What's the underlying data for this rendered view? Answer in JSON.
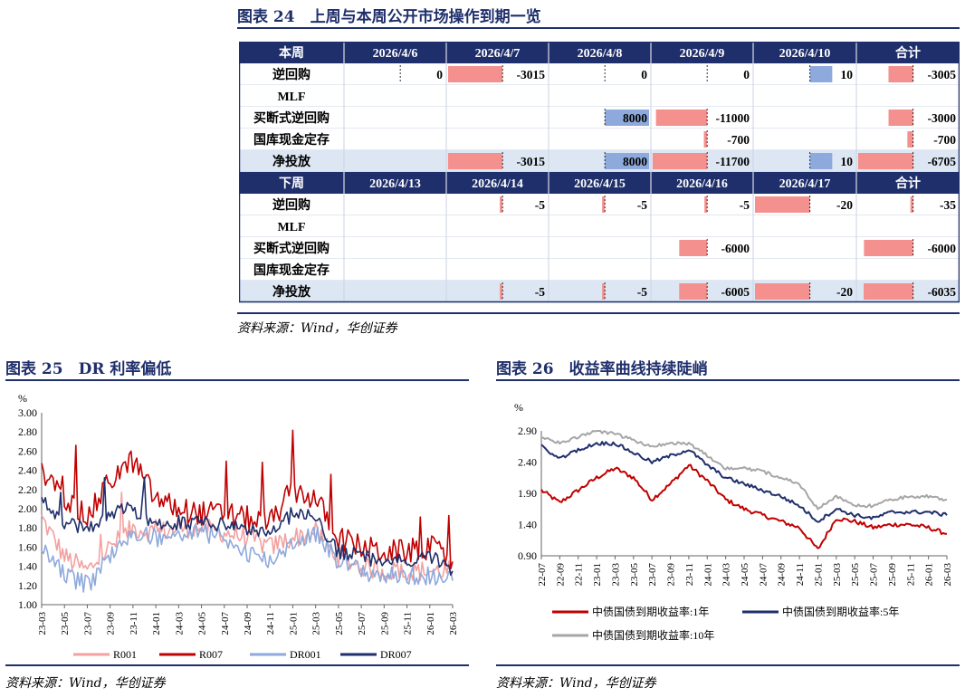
{
  "figure24": {
    "title": "图表 24　上周与本周公开市场操作到期一览",
    "source": "资料来源：Wind，华创证券",
    "colors": {
      "header": "#1F2F6B",
      "net_row": "#DDE7F4",
      "neg_bar": "#F4908E",
      "pos_bar": "#8EA9DB"
    },
    "blocks": [
      {
        "header": [
          "本周",
          "2026/4/6",
          "2026/4/7",
          "2026/4/8",
          "2026/4/9",
          "2026/4/10",
          "合计"
        ],
        "rows": [
          {
            "label": "逆回购",
            "net": false,
            "values": [
              "0",
              "-3015",
              "0",
              "0",
              "10",
              "-3005"
            ]
          },
          {
            "label": "MLF",
            "net": false,
            "values": [
              "",
              "",
              "",
              "",
              "",
              ""
            ]
          },
          {
            "label": "买断式逆回购",
            "net": false,
            "values": [
              "",
              "",
              "8000",
              "-11000",
              "",
              "-3000"
            ]
          },
          {
            "label": "国库现金定存",
            "net": false,
            "values": [
              "",
              "",
              "",
              "-700",
              "",
              "-700"
            ]
          },
          {
            "label": "净投放",
            "net": true,
            "values": [
              "",
              "-3015",
              "8000",
              "-11700",
              "10",
              "-6705"
            ]
          }
        ]
      },
      {
        "header": [
          "下周",
          "2026/4/13",
          "2026/4/14",
          "2026/4/15",
          "2026/4/16",
          "2026/4/17",
          "合计"
        ],
        "rows": [
          {
            "label": "逆回购",
            "net": false,
            "values": [
              "",
              "-5",
              "-5",
              "-5",
              "-20",
              "-35"
            ]
          },
          {
            "label": "MLF",
            "net": false,
            "values": [
              "",
              "",
              "",
              "",
              "",
              ""
            ]
          },
          {
            "label": "买断式逆回购",
            "net": false,
            "values": [
              "",
              "",
              "",
              "-6000",
              "",
              "-6000"
            ]
          },
          {
            "label": "国库现金定存",
            "net": false,
            "values": [
              "",
              "",
              "",
              "",
              "",
              ""
            ]
          },
          {
            "label": "净投放",
            "net": true,
            "values": [
              "",
              "-5",
              "-5",
              "-6005",
              "-20",
              "-6035"
            ]
          }
        ]
      }
    ]
  },
  "figure25": {
    "title": "图表 25　DR 利率偏低",
    "source": "资料来源：Wind，华创证券",
    "chart_data": {
      "type": "line",
      "ylabel": "%",
      "ylim": [
        1.0,
        3.0
      ],
      "y_ticks": [
        "1.00",
        "1.20",
        "1.40",
        "1.60",
        "1.80",
        "2.00",
        "2.20",
        "2.40",
        "2.60",
        "2.80",
        "3.00"
      ],
      "x_ticks": [
        "23-03",
        "23-05",
        "23-07",
        "23-09",
        "23-11",
        "24-01",
        "24-03",
        "24-05",
        "24-07",
        "24-09",
        "24-11",
        "25-01",
        "25-03",
        "25-05",
        "25-07",
        "25-09",
        "25-11",
        "26-01",
        "26-03"
      ],
      "legend_position": "bottom",
      "series": [
        {
          "name": "R001",
          "color": "#F4A0A0",
          "x": [
            "23-03",
            "23-05",
            "23-07",
            "23-09",
            "23-11",
            "24-01",
            "24-03",
            "24-05",
            "24-07",
            "24-09",
            "24-11",
            "25-01",
            "25-03",
            "25-05",
            "25-07",
            "25-09",
            "25-11",
            "26-01",
            "26-03"
          ],
          "values": [
            1.9,
            1.5,
            1.35,
            1.6,
            1.8,
            1.75,
            1.8,
            1.8,
            1.75,
            1.7,
            1.6,
            1.7,
            1.75,
            1.5,
            1.4,
            1.35,
            1.35,
            1.35,
            1.35
          ]
        },
        {
          "name": "R007",
          "color": "#C00000",
          "x": [
            "23-03",
            "23-05",
            "23-07",
            "23-09",
            "23-11",
            "24-01",
            "24-03",
            "24-05",
            "24-07",
            "24-09",
            "24-11",
            "25-01",
            "25-03",
            "25-05",
            "25-07",
            "25-09",
            "25-11",
            "26-01",
            "26-03"
          ],
          "values": [
            2.35,
            2.1,
            1.9,
            2.3,
            2.5,
            2.1,
            2.0,
            1.95,
            1.95,
            1.9,
            1.85,
            2.2,
            2.1,
            1.7,
            1.6,
            1.55,
            1.55,
            1.6,
            1.45
          ]
        },
        {
          "name": "DR001",
          "color": "#8EA9DB",
          "x": [
            "23-03",
            "23-05",
            "23-07",
            "23-09",
            "23-11",
            "24-01",
            "24-03",
            "24-05",
            "24-07",
            "24-09",
            "24-11",
            "25-01",
            "25-03",
            "25-05",
            "25-07",
            "25-09",
            "25-11",
            "26-01",
            "26-03"
          ],
          "values": [
            1.6,
            1.3,
            1.2,
            1.5,
            1.75,
            1.7,
            1.75,
            1.75,
            1.7,
            1.55,
            1.45,
            1.65,
            1.75,
            1.45,
            1.35,
            1.3,
            1.3,
            1.3,
            1.25
          ]
        },
        {
          "name": "DR007",
          "color": "#1F2F6B",
          "x": [
            "23-03",
            "23-05",
            "23-07",
            "23-09",
            "23-11",
            "24-01",
            "24-03",
            "24-05",
            "24-07",
            "24-09",
            "24-11",
            "25-01",
            "25-03",
            "25-05",
            "25-07",
            "25-09",
            "25-11",
            "26-01",
            "26-03"
          ],
          "values": [
            2.1,
            1.85,
            1.8,
            1.95,
            2.0,
            1.85,
            1.85,
            1.85,
            1.85,
            1.8,
            1.75,
            1.95,
            1.9,
            1.55,
            1.5,
            1.45,
            1.45,
            1.5,
            1.35
          ]
        }
      ]
    }
  },
  "figure26": {
    "title": "图表 26　收益率曲线持续陡峭",
    "source": "资料来源：Wind，华创证券",
    "chart_data": {
      "type": "line",
      "ylabel": "%",
      "ylim": [
        0.9,
        2.9
      ],
      "y_ticks": [
        "0.90",
        "1.40",
        "1.90",
        "2.40",
        "2.90"
      ],
      "x_ticks": [
        "22-07",
        "22-09",
        "22-11",
        "23-01",
        "23-03",
        "23-05",
        "23-07",
        "23-09",
        "23-11",
        "24-01",
        "24-03",
        "24-05",
        "24-07",
        "24-09",
        "24-11",
        "25-01",
        "25-03",
        "25-05",
        "25-07",
        "25-09",
        "25-11",
        "26-01",
        "26-03"
      ],
      "legend_position": "bottom",
      "series": [
        {
          "name": "中债国债到期收益率:1年",
          "color": "#C00000",
          "x": [
            "22-07",
            "22-09",
            "22-11",
            "23-01",
            "23-03",
            "23-05",
            "23-07",
            "23-09",
            "23-11",
            "24-01",
            "24-03",
            "24-05",
            "24-07",
            "24-09",
            "24-11",
            "25-01",
            "25-03",
            "25-05",
            "25-07",
            "25-09",
            "25-11",
            "26-01",
            "26-03"
          ],
          "values": [
            1.95,
            1.75,
            1.95,
            2.15,
            2.3,
            2.15,
            1.8,
            2.05,
            2.35,
            2.1,
            1.8,
            1.65,
            1.55,
            1.45,
            1.35,
            1.0,
            1.5,
            1.45,
            1.35,
            1.4,
            1.4,
            1.35,
            1.25
          ]
        },
        {
          "name": "中债国债到期收益率:5年",
          "color": "#1F2F6B",
          "x": [
            "22-07",
            "22-09",
            "22-11",
            "23-01",
            "23-03",
            "23-05",
            "23-07",
            "23-09",
            "23-11",
            "24-01",
            "24-03",
            "24-05",
            "24-07",
            "24-09",
            "24-11",
            "25-01",
            "25-03",
            "25-05",
            "25-07",
            "25-09",
            "25-11",
            "26-01",
            "26-03"
          ],
          "values": [
            2.65,
            2.45,
            2.6,
            2.7,
            2.7,
            2.55,
            2.4,
            2.5,
            2.6,
            2.35,
            2.15,
            2.05,
            1.95,
            1.85,
            1.7,
            1.45,
            1.65,
            1.55,
            1.5,
            1.6,
            1.6,
            1.6,
            1.55
          ]
        },
        {
          "name": "中债国债到期收益率:10年",
          "color": "#A6A6A6",
          "x": [
            "22-07",
            "22-09",
            "22-11",
            "23-01",
            "23-03",
            "23-05",
            "23-07",
            "23-09",
            "23-11",
            "24-01",
            "24-03",
            "24-05",
            "24-07",
            "24-09",
            "24-11",
            "25-01",
            "25-03",
            "25-05",
            "25-07",
            "25-09",
            "25-11",
            "26-01",
            "26-03"
          ],
          "values": [
            2.8,
            2.7,
            2.8,
            2.9,
            2.85,
            2.75,
            2.65,
            2.7,
            2.7,
            2.5,
            2.3,
            2.3,
            2.25,
            2.15,
            2.05,
            1.65,
            1.85,
            1.7,
            1.7,
            1.8,
            1.85,
            1.85,
            1.8
          ]
        }
      ]
    }
  }
}
